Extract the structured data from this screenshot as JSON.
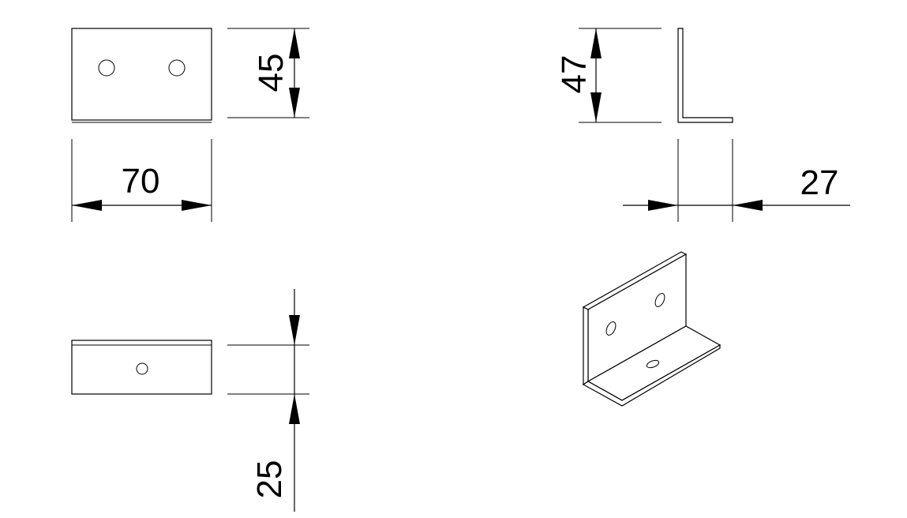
{
  "drawing": {
    "dimensions": {
      "front_height": "45",
      "front_width": "70",
      "side_height": "47",
      "side_depth": "27",
      "bottom_depth": "25"
    },
    "colors": {
      "line": "#000000",
      "background": "#ffffff"
    }
  }
}
